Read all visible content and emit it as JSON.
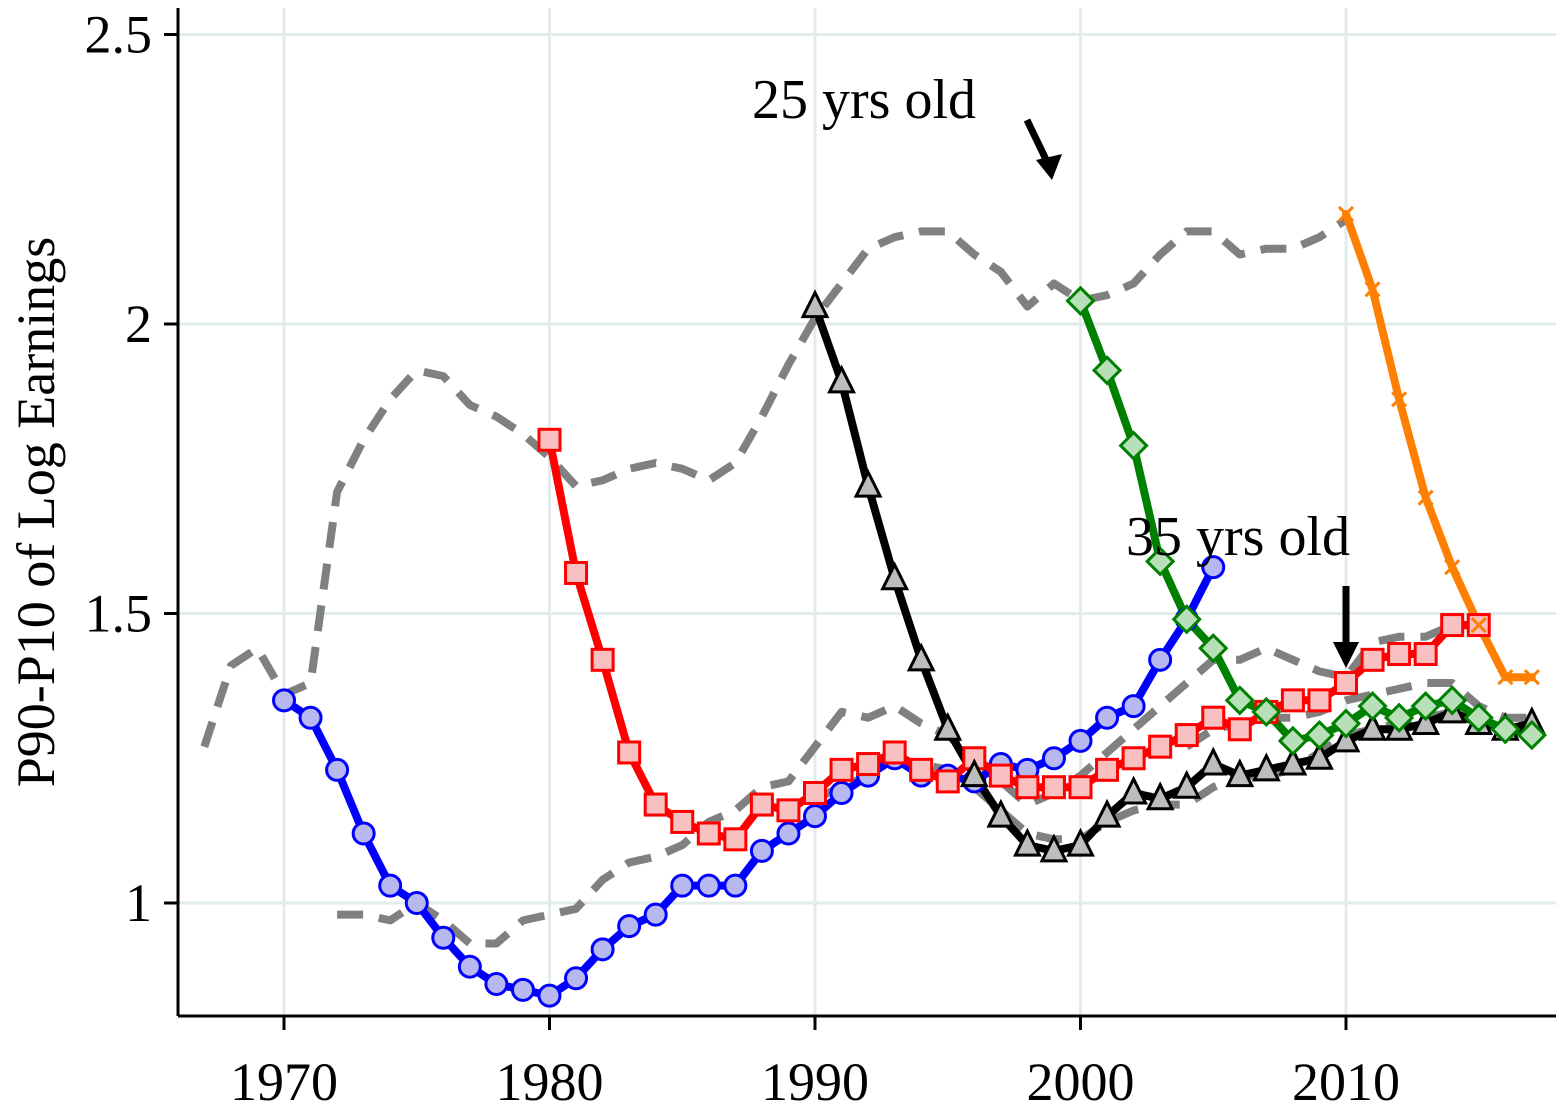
{
  "chart_data": {
    "type": "line",
    "title": "",
    "xlabel": "",
    "ylabel": "P90-P10 of Log Earnings",
    "xlim": [
      1967,
      2018
    ],
    "ylim": [
      0.81,
      2.54
    ],
    "xticks": [
      1970,
      1980,
      1990,
      2000,
      2010
    ],
    "yticks": [
      1,
      1.5,
      2,
      2.5
    ],
    "ytick_labels": [
      "1",
      "1.5",
      "2",
      "2.5"
    ],
    "grid": true,
    "legend": "none",
    "annotations": [
      {
        "text": "25 yrs old",
        "arrow_to": [
          1999,
          2.25
        ],
        "direction": "down-right"
      },
      {
        "text": "35 yrs old",
        "arrow_to": [
          2010,
          1.4
        ],
        "direction": "down"
      }
    ],
    "reference_lines": [
      {
        "style": "dashed-gray",
        "x": [
          1967,
          1968,
          1969,
          1970,
          1971,
          1972,
          1973,
          1974,
          1975,
          1976,
          1977,
          1978,
          1979,
          1980,
          1981,
          1982,
          1983,
          1984,
          1985,
          1986,
          1987,
          1988,
          1989,
          1990,
          1991,
          1992,
          1993,
          1994,
          1995,
          1996,
          1997,
          1998,
          1999,
          2000,
          2001,
          2002,
          2003,
          2004,
          2005,
          2006,
          2007,
          2008,
          2009,
          2010
        ],
        "y": [
          1.27,
          1.41,
          1.44,
          1.36,
          1.38,
          1.71,
          1.8,
          1.87,
          1.92,
          1.91,
          1.86,
          1.84,
          1.81,
          1.77,
          1.72,
          1.73,
          1.75,
          1.76,
          1.75,
          1.73,
          1.76,
          1.84,
          1.93,
          2.01,
          2.07,
          2.13,
          2.15,
          2.16,
          2.16,
          2.12,
          2.09,
          2.03,
          2.07,
          2.04,
          2.05,
          2.07,
          2.12,
          2.16,
          2.16,
          2.12,
          2.13,
          2.13,
          2.15,
          2.18
        ]
      },
      {
        "style": "dashed-gray",
        "x": [
          1972,
          1973,
          1974,
          1975,
          1976,
          1977,
          1978,
          1979,
          1980,
          1981,
          1982,
          1983,
          1984,
          1985,
          1986,
          1987,
          1988,
          1989,
          1990,
          1991,
          1992,
          1993,
          1994,
          1995,
          1996,
          1997,
          1998,
          1999,
          2000,
          2001,
          2002,
          2003,
          2004,
          2005,
          2006,
          2007,
          2008,
          2009,
          2010,
          2011,
          2012,
          2013,
          2014,
          2015
        ],
        "y": [
          0.98,
          0.98,
          0.97,
          1.0,
          0.97,
          0.93,
          0.93,
          0.97,
          0.98,
          0.99,
          1.04,
          1.07,
          1.08,
          1.1,
          1.14,
          1.16,
          1.2,
          1.21,
          1.27,
          1.33,
          1.32,
          1.34,
          1.31,
          1.29,
          1.25,
          1.21,
          1.17,
          1.19,
          1.22,
          1.26,
          1.3,
          1.34,
          1.38,
          1.42,
          1.42,
          1.44,
          1.42,
          1.4,
          1.39,
          1.45,
          1.46,
          1.46,
          1.48,
          1.48
        ]
      },
      {
        "style": "dashed-gray",
        "x": [
          1990,
          1991,
          1992,
          1993,
          1994,
          1995,
          1996,
          1997,
          1998,
          1999,
          2000,
          2001,
          2002,
          2003,
          2004,
          2005,
          2006,
          2007,
          2008,
          2009,
          2010,
          2011,
          2012,
          2013,
          2014,
          2015,
          2016,
          2017
        ],
        "y": [
          1.18,
          1.2,
          1.22,
          1.24,
          1.24,
          1.23,
          1.2,
          1.16,
          1.12,
          1.11,
          1.11,
          1.14,
          1.16,
          1.17,
          1.17,
          1.2,
          1.22,
          1.22,
          1.23,
          1.26,
          1.29,
          1.3,
          1.31,
          1.32,
          1.33,
          1.31,
          1.3,
          1.3
        ]
      },
      {
        "style": "dashed-gray",
        "x": [
          2004,
          2005,
          2006,
          2007,
          2008,
          2009,
          2010,
          2011,
          2012,
          2013,
          2014,
          2015,
          2016,
          2017
        ],
        "y": [
          1.27,
          1.3,
          1.31,
          1.32,
          1.32,
          1.33,
          1.35,
          1.36,
          1.37,
          1.38,
          1.38,
          1.34,
          1.32,
          1.32
        ]
      }
    ],
    "series": [
      {
        "color": "#0000ff",
        "fill": "#b8b8f0",
        "marker": "circle",
        "x": [
          1970,
          1971,
          1972,
          1973,
          1974,
          1975,
          1976,
          1977,
          1978,
          1979,
          1980,
          1981,
          1982,
          1983,
          1984,
          1985,
          1986,
          1987,
          1988,
          1989,
          1990,
          1991,
          1992,
          1993,
          1994,
          1995,
          1996,
          1997,
          1998,
          1999,
          2000,
          2001,
          2002,
          2003,
          2004,
          2005
        ],
        "y": [
          1.35,
          1.32,
          1.23,
          1.12,
          1.03,
          1.0,
          0.94,
          0.89,
          0.86,
          0.85,
          0.84,
          0.87,
          0.92,
          0.96,
          0.98,
          1.03,
          1.03,
          1.03,
          1.09,
          1.12,
          1.15,
          1.19,
          1.22,
          1.25,
          1.22,
          1.22,
          1.21,
          1.24,
          1.23,
          1.25,
          1.28,
          1.32,
          1.34,
          1.42,
          1.49,
          1.58
        ]
      },
      {
        "color": "#ff0000",
        "fill": "#f8c0c0",
        "marker": "square",
        "x": [
          1980,
          1981,
          1982,
          1983,
          1984,
          1985,
          1986,
          1987,
          1988,
          1989,
          1990,
          1991,
          1992,
          1993,
          1994,
          1995,
          1996,
          1997,
          1998,
          1999,
          2000,
          2001,
          2002,
          2003,
          2004,
          2005,
          2006,
          2007,
          2008,
          2009,
          2010,
          2011,
          2012,
          2013,
          2014,
          2015
        ],
        "y": [
          1.8,
          1.57,
          1.42,
          1.26,
          1.17,
          1.14,
          1.12,
          1.11,
          1.17,
          1.16,
          1.19,
          1.23,
          1.24,
          1.26,
          1.23,
          1.21,
          1.25,
          1.22,
          1.2,
          1.2,
          1.2,
          1.23,
          1.25,
          1.27,
          1.29,
          1.32,
          1.3,
          1.33,
          1.35,
          1.35,
          1.38,
          1.42,
          1.43,
          1.43,
          1.48,
          1.48
        ]
      },
      {
        "color": "#000000",
        "fill": "#bdbdbd",
        "marker": "triangle",
        "x": [
          1990,
          1991,
          1992,
          1993,
          1994,
          1995,
          1996,
          1997,
          1998,
          1999,
          2000,
          2001,
          2002,
          2003,
          2004,
          2005,
          2006,
          2007,
          2008,
          2009,
          2010,
          2011,
          2012,
          2013,
          2014,
          2015,
          2016,
          2017
        ],
        "y": [
          2.03,
          1.9,
          1.72,
          1.56,
          1.42,
          1.3,
          1.22,
          1.15,
          1.1,
          1.09,
          1.1,
          1.15,
          1.19,
          1.18,
          1.2,
          1.24,
          1.22,
          1.23,
          1.24,
          1.25,
          1.28,
          1.3,
          1.3,
          1.31,
          1.33,
          1.31,
          1.3,
          1.31
        ]
      },
      {
        "color": "#008000",
        "fill": "#b8e0b8",
        "marker": "diamond",
        "x": [
          2000,
          2001,
          2002,
          2003,
          2004,
          2005,
          2006,
          2007,
          2008,
          2009,
          2010,
          2011,
          2012,
          2013,
          2014,
          2015,
          2016,
          2017
        ],
        "y": [
          2.04,
          1.92,
          1.79,
          1.59,
          1.49,
          1.44,
          1.35,
          1.33,
          1.28,
          1.29,
          1.31,
          1.34,
          1.32,
          1.34,
          1.35,
          1.32,
          1.3,
          1.29
        ]
      },
      {
        "color": "#ff8000",
        "fill": "#ff8000",
        "marker": "cross",
        "x": [
          2010,
          2011,
          2012,
          2013,
          2014,
          2015,
          2016,
          2017
        ],
        "y": [
          2.19,
          2.06,
          1.87,
          1.7,
          1.58,
          1.48,
          1.39,
          1.39
        ]
      }
    ]
  }
}
